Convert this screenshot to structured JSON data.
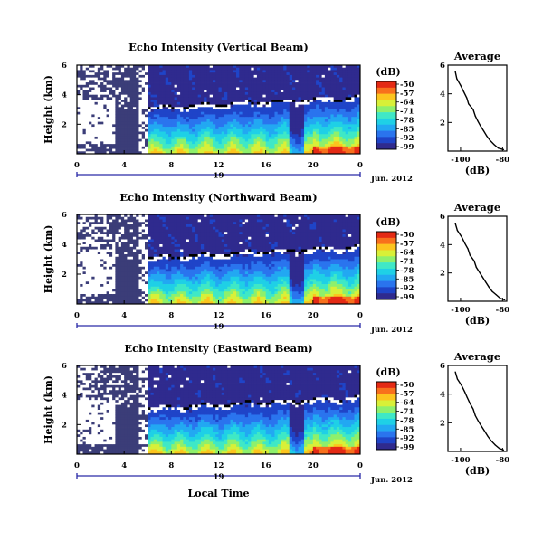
{
  "figure": {
    "date_label": "Jun. 2012",
    "day_label": "19",
    "xlabel": "Local Time",
    "colorbar_unit": "(dB)",
    "colorbar_ticks": [
      "-50",
      "-57",
      "-64",
      "-71",
      "-78",
      "-85",
      "-92",
      "-99"
    ],
    "colors": {
      "background": "#ffffff",
      "nodata": "#3b3d78",
      "frame": "#000000",
      "day_axis": "#2a2aa8",
      "avg_line": "#000000"
    },
    "colormap": [
      "#2f2a8e",
      "#1f44c8",
      "#2a74ee",
      "#22a8f2",
      "#1fd0e6",
      "#3fe8c6",
      "#8ef06c",
      "#d8f038",
      "#fcc41e",
      "#f8701c",
      "#e42a14"
    ]
  },
  "chart_data": [
    {
      "type": "heatmap",
      "title": "Echo Intensity (Vertical Beam)",
      "xlabel": "",
      "ylabel": "Height (km)",
      "x_ticks": [
        "0",
        "4",
        "8",
        "12",
        "16",
        "20",
        "0"
      ],
      "x_range_hours": [
        0,
        24
      ],
      "y_ticks": [
        "6",
        "4",
        "2"
      ],
      "y_range_km": [
        0,
        6
      ],
      "colorbar": {
        "label": "(dB)",
        "range": [
          -99,
          -50
        ]
      },
      "average_profile": {
        "type": "line",
        "title": "Average",
        "xlabel": "(dB)",
        "x_ticks": [
          "-100",
          "-80"
        ],
        "xlim": [
          -106,
          -78
        ],
        "y_ticks": [
          "6",
          "4",
          "2"
        ],
        "ylim": [
          0,
          6
        ],
        "points": [
          [
            -102.5,
            5.55
          ],
          [
            -101.8,
            5.05
          ],
          [
            -100.0,
            4.6
          ],
          [
            -98.5,
            4.15
          ],
          [
            -97.0,
            3.7
          ],
          [
            -96.2,
            3.3
          ],
          [
            -94.0,
            2.9
          ],
          [
            -93.0,
            2.45
          ],
          [
            -91.8,
            2.1
          ],
          [
            -90.5,
            1.75
          ],
          [
            -89.0,
            1.4
          ],
          [
            -87.5,
            1.05
          ],
          [
            -86.0,
            0.75
          ],
          [
            -84.0,
            0.45
          ],
          [
            -82.0,
            0.2
          ],
          [
            -79.5,
            0.1
          ]
        ]
      }
    },
    {
      "type": "heatmap",
      "title": "Echo Intensity (Northward Beam)",
      "xlabel": "",
      "ylabel": "Height (km)",
      "x_ticks": [
        "0",
        "4",
        "8",
        "12",
        "16",
        "20",
        "0"
      ],
      "x_range_hours": [
        0,
        24
      ],
      "y_ticks": [
        "6",
        "4",
        "2"
      ],
      "y_range_km": [
        0,
        6
      ],
      "colorbar": {
        "label": "(dB)",
        "range": [
          -99,
          -50
        ]
      },
      "average_profile": {
        "type": "line",
        "title": "Average",
        "xlabel": "(dB)",
        "x_ticks": [
          "-100",
          "-80"
        ],
        "xlim": [
          -106,
          -78
        ],
        "y_ticks": [
          "6",
          "4",
          "2"
        ],
        "ylim": [
          0,
          6
        ],
        "points": [
          [
            -102.5,
            5.5
          ],
          [
            -101.5,
            5.0
          ],
          [
            -99.5,
            4.55
          ],
          [
            -98.0,
            4.1
          ],
          [
            -96.5,
            3.7
          ],
          [
            -95.5,
            3.25
          ],
          [
            -93.5,
            2.85
          ],
          [
            -92.5,
            2.4
          ],
          [
            -91.0,
            2.05
          ],
          [
            -89.5,
            1.7
          ],
          [
            -88.0,
            1.35
          ],
          [
            -86.5,
            1.0
          ],
          [
            -85.0,
            0.7
          ],
          [
            -83.0,
            0.45
          ],
          [
            -81.0,
            0.2
          ],
          [
            -79.0,
            0.1
          ]
        ]
      }
    },
    {
      "type": "heatmap",
      "title": "Echo Intensity (Eastward Beam)",
      "xlabel": "Local Time",
      "ylabel": "Height (km)",
      "x_ticks": [
        "0",
        "4",
        "8",
        "12",
        "16",
        "20",
        "0"
      ],
      "x_range_hours": [
        0,
        24
      ],
      "y_ticks": [
        "6",
        "4",
        "2"
      ],
      "y_range_km": [
        0,
        6
      ],
      "colorbar": {
        "label": "(dB)",
        "range": [
          -99,
          -50
        ]
      },
      "average_profile": {
        "type": "line",
        "title": "Average",
        "xlabel": "(dB)",
        "x_ticks": [
          "-100",
          "-80"
        ],
        "xlim": [
          -106,
          -78
        ],
        "y_ticks": [
          "6",
          "4",
          "2"
        ],
        "ylim": [
          0,
          6
        ],
        "points": [
          [
            -102.5,
            5.55
          ],
          [
            -101.5,
            5.05
          ],
          [
            -99.5,
            4.6
          ],
          [
            -98.0,
            4.15
          ],
          [
            -96.8,
            3.75
          ],
          [
            -95.5,
            3.35
          ],
          [
            -94.0,
            2.95
          ],
          [
            -93.0,
            2.5
          ],
          [
            -91.5,
            2.1
          ],
          [
            -90.0,
            1.75
          ],
          [
            -88.5,
            1.4
          ],
          [
            -87.0,
            1.05
          ],
          [
            -85.5,
            0.75
          ],
          [
            -83.5,
            0.45
          ],
          [
            -81.5,
            0.2
          ],
          [
            -79.5,
            0.1
          ]
        ]
      }
    }
  ]
}
